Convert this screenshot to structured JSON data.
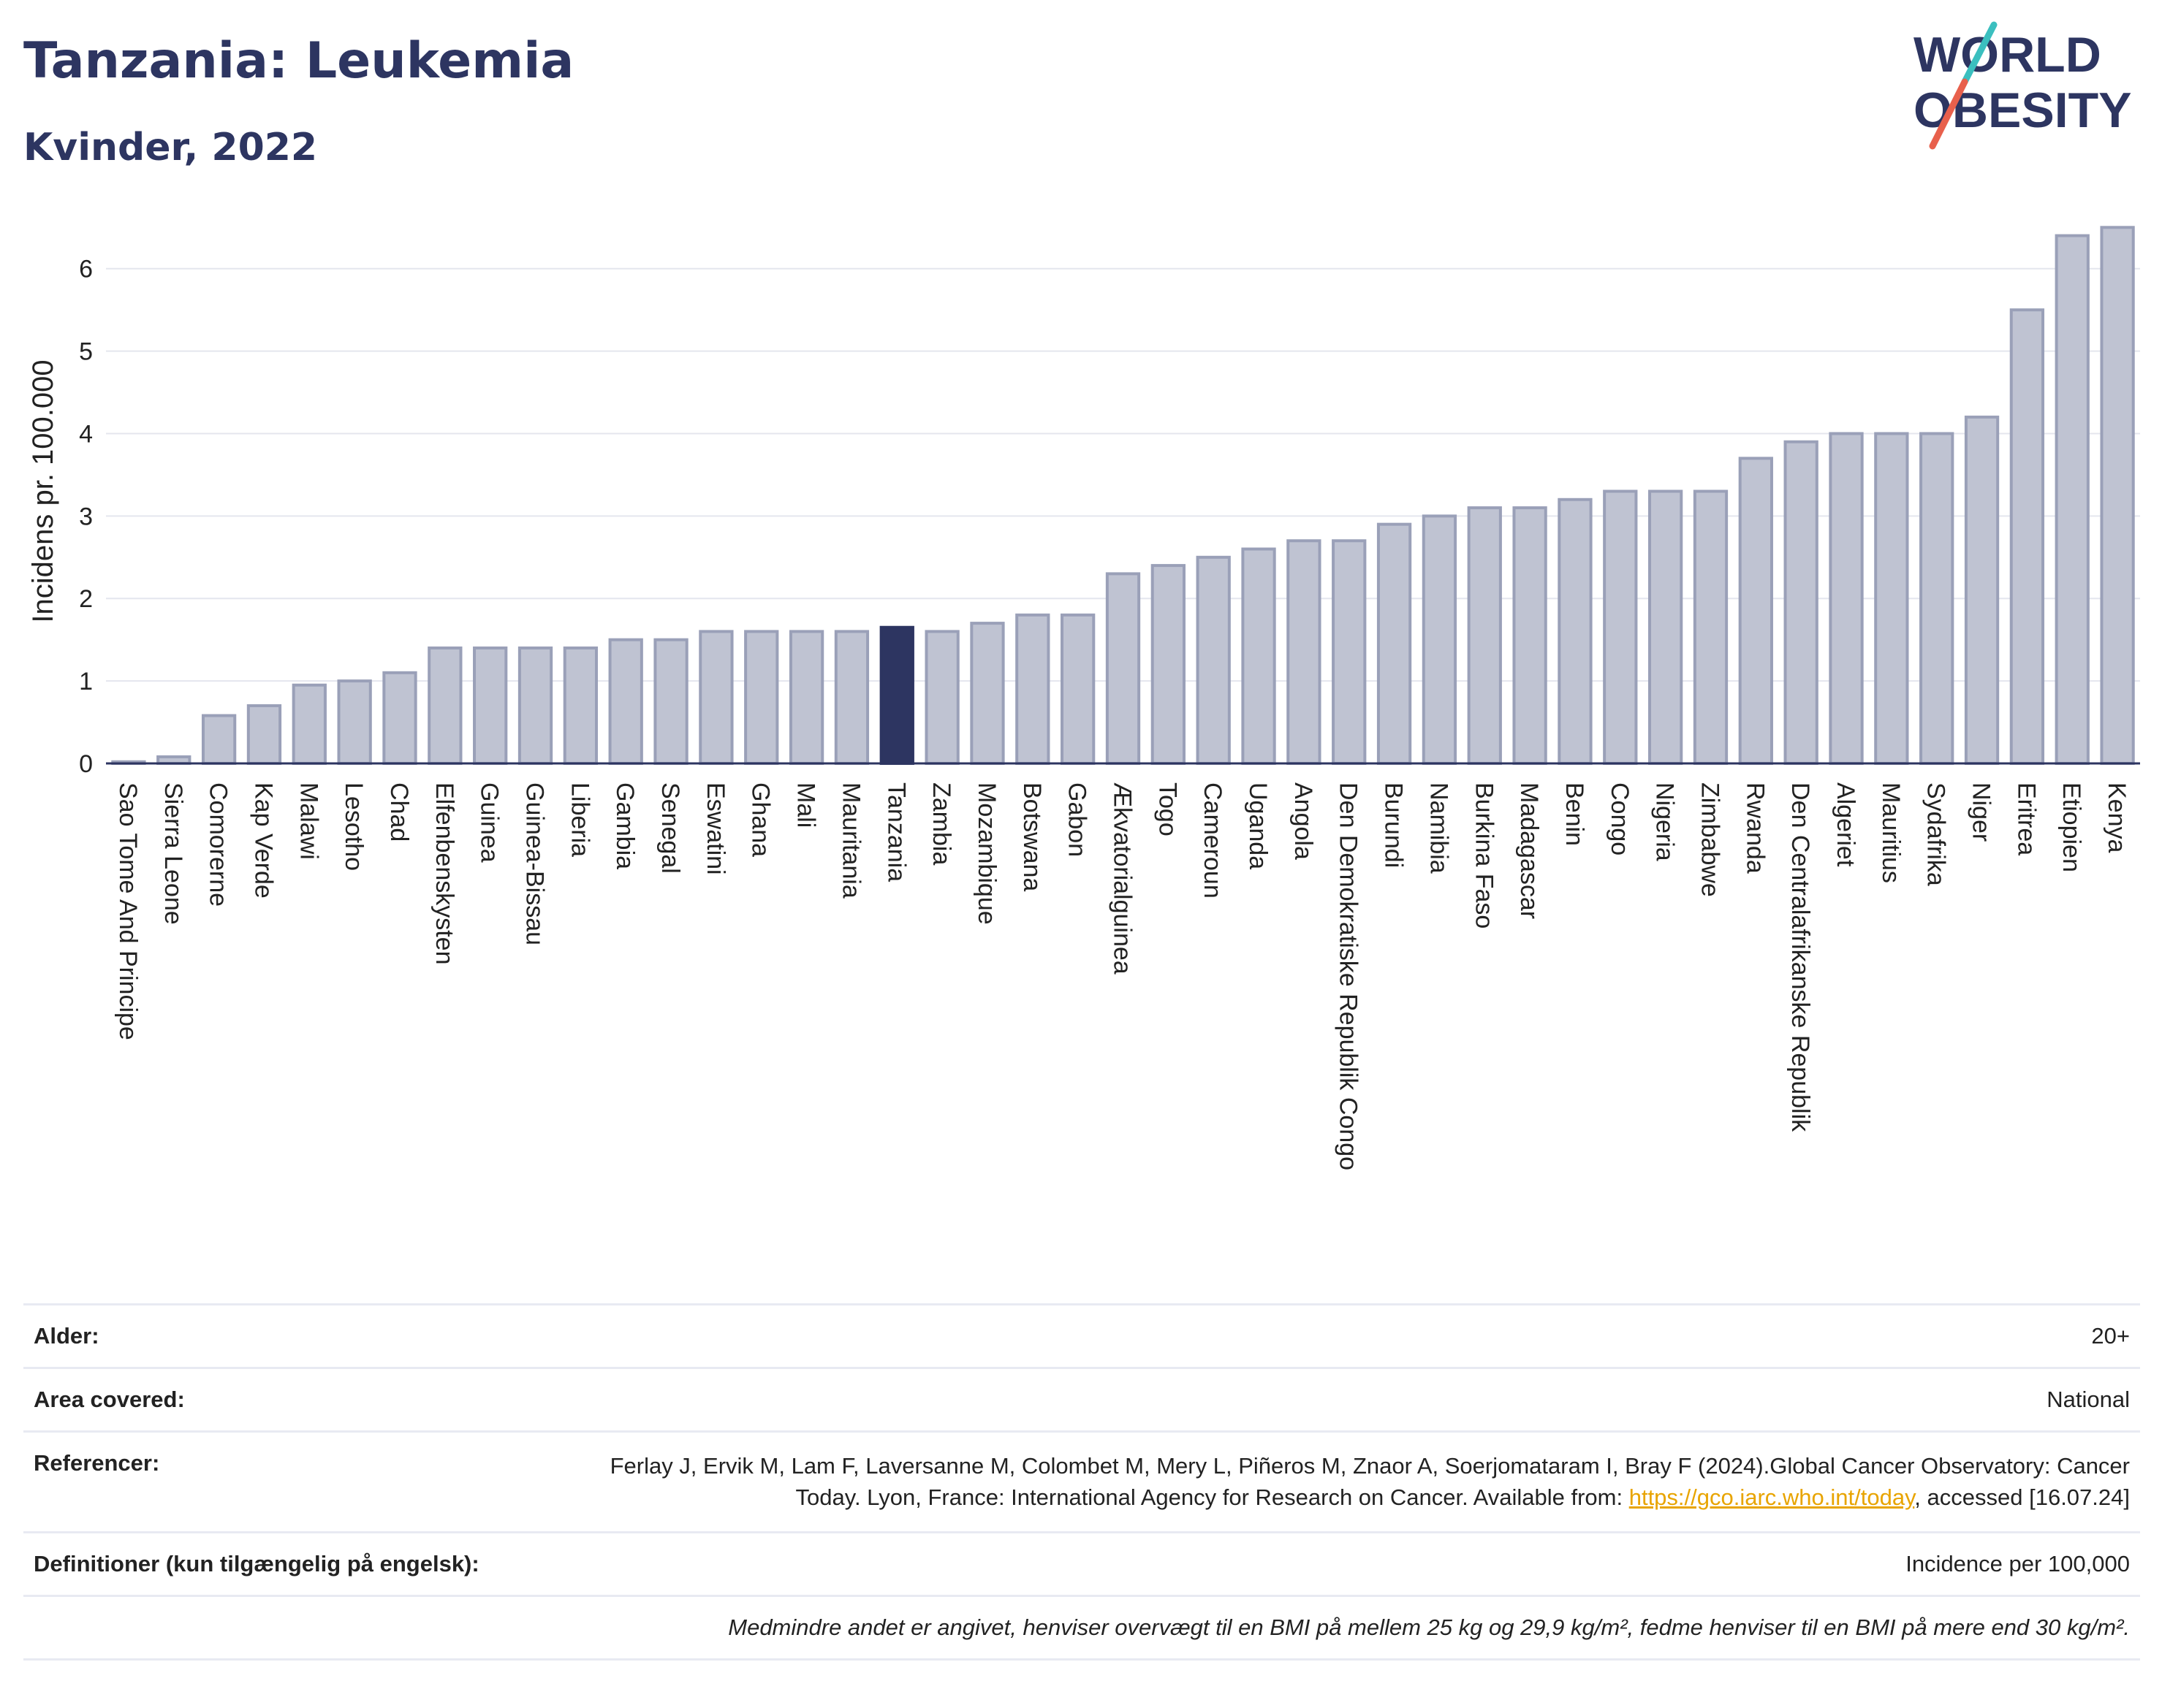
{
  "header": {
    "title": "Tanzania: Leukemia",
    "subtitle": "Kvinder, 2022"
  },
  "logo": {
    "line1": "WORLD",
    "line2": "OBESITY",
    "slash_colors": [
      "#3bbfbf",
      "#e8604c"
    ],
    "text_color": "#2d3561"
  },
  "colors": {
    "highlight": "#2d3561",
    "bar": "#bfc3d2",
    "bar_stroke": "#9aa0b8",
    "grid": "#e4e6ee",
    "title": "#2d3561",
    "link": "#e8a400"
  },
  "chart_data": {
    "type": "bar",
    "ylabel": "Incidens pr. 100.000",
    "xlabel": "",
    "ylim": [
      0,
      6.6
    ],
    "yticks": [
      0,
      1,
      2,
      3,
      4,
      5,
      6
    ],
    "grid": true,
    "highlight": "Tanzania",
    "categories": [
      "Sao Tome And Principe",
      "Sierra Leone",
      "Comorerne",
      "Kap Verde",
      "Malawi",
      "Lesotho",
      "Chad",
      "Elfenbenskysten",
      "Guinea",
      "Guinea-Bissau",
      "Liberia",
      "Gambia",
      "Senegal",
      "Eswatini",
      "Ghana",
      "Mali",
      "Mauritania",
      "Tanzania",
      "Zambia",
      "Mozambique",
      "Botswana",
      "Gabon",
      "Ækvatorialguinea",
      "Togo",
      "Cameroun",
      "Uganda",
      "Angola",
      "Den Demokratiske Republik Congo",
      "Burundi",
      "Namibia",
      "Burkina Faso",
      "Madagascar",
      "Benin",
      "Congo",
      "Nigeria",
      "Zimbabwe",
      "Rwanda",
      "Den Centralafrikanske Republik",
      "Algeriet",
      "Mauritius",
      "Sydafrika",
      "Niger",
      "Eritrea",
      "Etiopien",
      "Kenya"
    ],
    "values": [
      0.02,
      0.08,
      0.58,
      0.7,
      0.95,
      1.0,
      1.1,
      1.4,
      1.4,
      1.4,
      1.4,
      1.5,
      1.5,
      1.6,
      1.6,
      1.6,
      1.6,
      1.65,
      1.6,
      1.7,
      1.8,
      1.8,
      2.3,
      2.4,
      2.5,
      2.6,
      2.7,
      2.7,
      2.9,
      3.0,
      3.1,
      3.1,
      3.2,
      3.3,
      3.3,
      3.3,
      3.7,
      3.9,
      4.0,
      4.0,
      4.0,
      4.2,
      5.5,
      6.4,
      6.5
    ]
  },
  "footer": {
    "age_label": "Alder:",
    "age_value": "20+",
    "area_label": "Area covered:",
    "area_value": "National",
    "ref_label": "Referencer:",
    "ref_text_1": "Ferlay J, Ervik M, Lam F, Laversanne M, Colombet M, Mery L, Piñeros M, Znaor A, Soerjomataram I, Bray F (2024).Global Cancer Observatory: Cancer Today. Lyon, France: International Agency for Research on Cancer. Available from: ",
    "ref_link": "https://gco.iarc.who.int/today",
    "ref_text_2": ", accessed [16.07.24]",
    "def_label": "Definitioner (kun tilgængelig på engelsk):",
    "def_value": "Incidence per 100,000",
    "note": "Medmindre andet er angivet, henviser overvægt til en BMI på mellem 25 kg og 29,9 kg/m², fedme henviser til en BMI på mere end 30 kg/m²."
  }
}
